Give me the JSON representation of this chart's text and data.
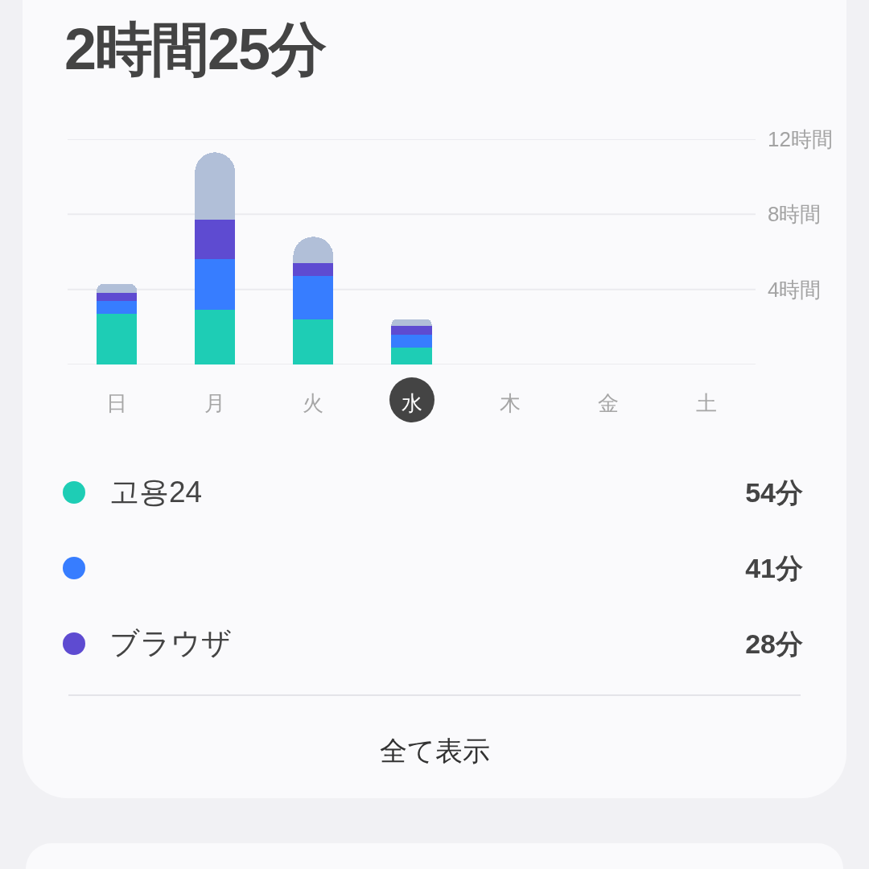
{
  "chart_data": {
    "type": "bar",
    "title": "2時間25分",
    "categories": [
      "日",
      "月",
      "火",
      "水",
      "木",
      "金",
      "土"
    ],
    "series": [
      {
        "name": "고용24",
        "color": "#1ecdb5",
        "values": [
          2.7,
          2.9,
          2.4,
          0.9,
          null,
          null,
          null
        ]
      },
      {
        "name": null,
        "color": "#377dff",
        "values": [
          0.7,
          2.7,
          2.3,
          0.68,
          null,
          null,
          null
        ]
      },
      {
        "name": "ブラウザ",
        "color": "#5e4bd1",
        "values": [
          0.4,
          2.1,
          0.7,
          0.47,
          null,
          null,
          null
        ]
      },
      {
        "color": "#b1bfd8",
        "values": [
          0.5,
          3.6,
          1.4,
          0.37,
          null,
          null,
          null
        ]
      }
    ],
    "stacked": true,
    "ylim": [
      0,
      12
    ],
    "yticks": [
      {
        "value": 0,
        "label": null
      },
      {
        "value": 4,
        "label": "4時間"
      },
      {
        "value": 8,
        "label": "8時間"
      },
      {
        "value": 12,
        "label": "12時間"
      }
    ],
    "grid": "y",
    "legend": "bottom",
    "annotations": [
      "54分",
      "41分",
      "28分",
      "全て表示"
    ]
  }
}
